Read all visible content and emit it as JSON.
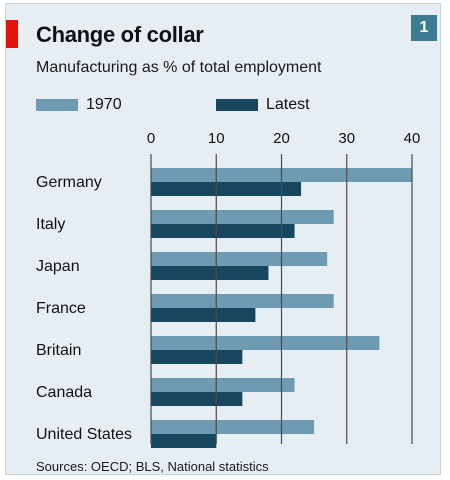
{
  "header": {
    "title": "Change of collar",
    "subtitle": "Manufacturing as % of total employment",
    "badge": "1"
  },
  "colors": {
    "series_1970": "#6e9ab2",
    "series_latest": "#16475e",
    "background": "#e7eef3",
    "accent": "#e3120b",
    "gridline": "#4a4a4a"
  },
  "chart_data": {
    "type": "bar",
    "orientation": "horizontal",
    "categories": [
      "Germany",
      "Italy",
      "Japan",
      "France",
      "Britain",
      "Canada",
      "United States"
    ],
    "series": [
      {
        "name": "1970",
        "values": [
          40,
          28,
          27,
          28,
          35,
          22,
          25
        ]
      },
      {
        "name": "Latest",
        "values": [
          23,
          22,
          18,
          16,
          14,
          14,
          10
        ]
      }
    ],
    "xticks": [
      0,
      10,
      20,
      30,
      40
    ],
    "xlim": [
      0,
      40
    ],
    "title": "Change of collar",
    "subtitle": "Manufacturing as % of total employment",
    "legend_position": "top-left",
    "grid": true
  },
  "footer": {
    "source": "Sources: OECD; BLS, National statistics"
  }
}
